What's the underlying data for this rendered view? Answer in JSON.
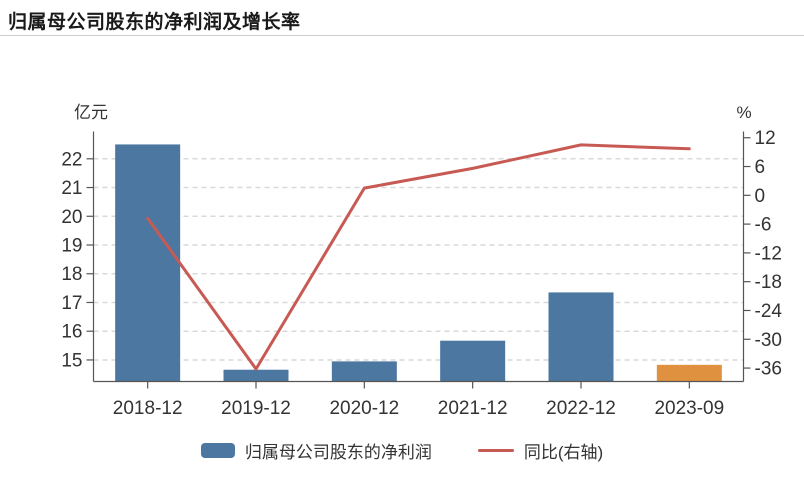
{
  "title": "归属母公司股东的净利润及增长率",
  "chart_data": {
    "type": "bar",
    "subtype": "bar+line-dual-axis",
    "title": "归属母公司股东的净利润及增长率",
    "categories": [
      "2018-12",
      "2019-12",
      "2020-12",
      "2021-12",
      "2022-12",
      "2023-09"
    ],
    "series": [
      {
        "name": "归属母公司股东的净利润",
        "type": "bar",
        "axis": "left",
        "unit": "亿元",
        "values": [
          22.5,
          14.66,
          14.95,
          15.67,
          17.35,
          14.83
        ],
        "bar_colors": [
          "#4B77A0",
          "#4B77A0",
          "#4B77A0",
          "#4B77A0",
          "#4B77A0",
          "#DF913F"
        ]
      },
      {
        "name": "同比(右轴)",
        "type": "line",
        "axis": "right",
        "unit": "%",
        "values": [
          -4.8,
          -36.2,
          1.5,
          5.6,
          10.5,
          9.7
        ],
        "color": "#C85A54"
      }
    ],
    "left_axis": {
      "label": "亿元",
      "ticks": [
        15,
        16,
        17,
        18,
        19,
        20,
        21,
        22
      ],
      "range": [
        14.25,
        22.95
      ]
    },
    "right_axis": {
      "label": "%",
      "ticks": [
        -36,
        -30,
        -24,
        -18,
        -12,
        -6,
        0,
        6,
        12
      ],
      "range": [
        -38.8,
        13.3
      ]
    },
    "grid": {
      "horizontal": true,
      "style": "dashed",
      "color": "#d9d9d9"
    },
    "legend_position": "bottom"
  },
  "legend": {
    "items": [
      {
        "label": "归属母公司股东的净利润",
        "swatch": "bar",
        "color": "#4B77A0"
      },
      {
        "label": "同比(右轴)",
        "swatch": "line",
        "color": "#C85A54"
      }
    ]
  },
  "colors": {
    "bar_blue": "#4B77A0",
    "bar_orange": "#DF913F",
    "line_red": "#C85A54",
    "axis": "#555555",
    "tick_text": "#333333",
    "grid": "#d9d9d9",
    "title_text": "#1a1a1a",
    "divider": "#cccccc",
    "background": "#ffffff"
  }
}
